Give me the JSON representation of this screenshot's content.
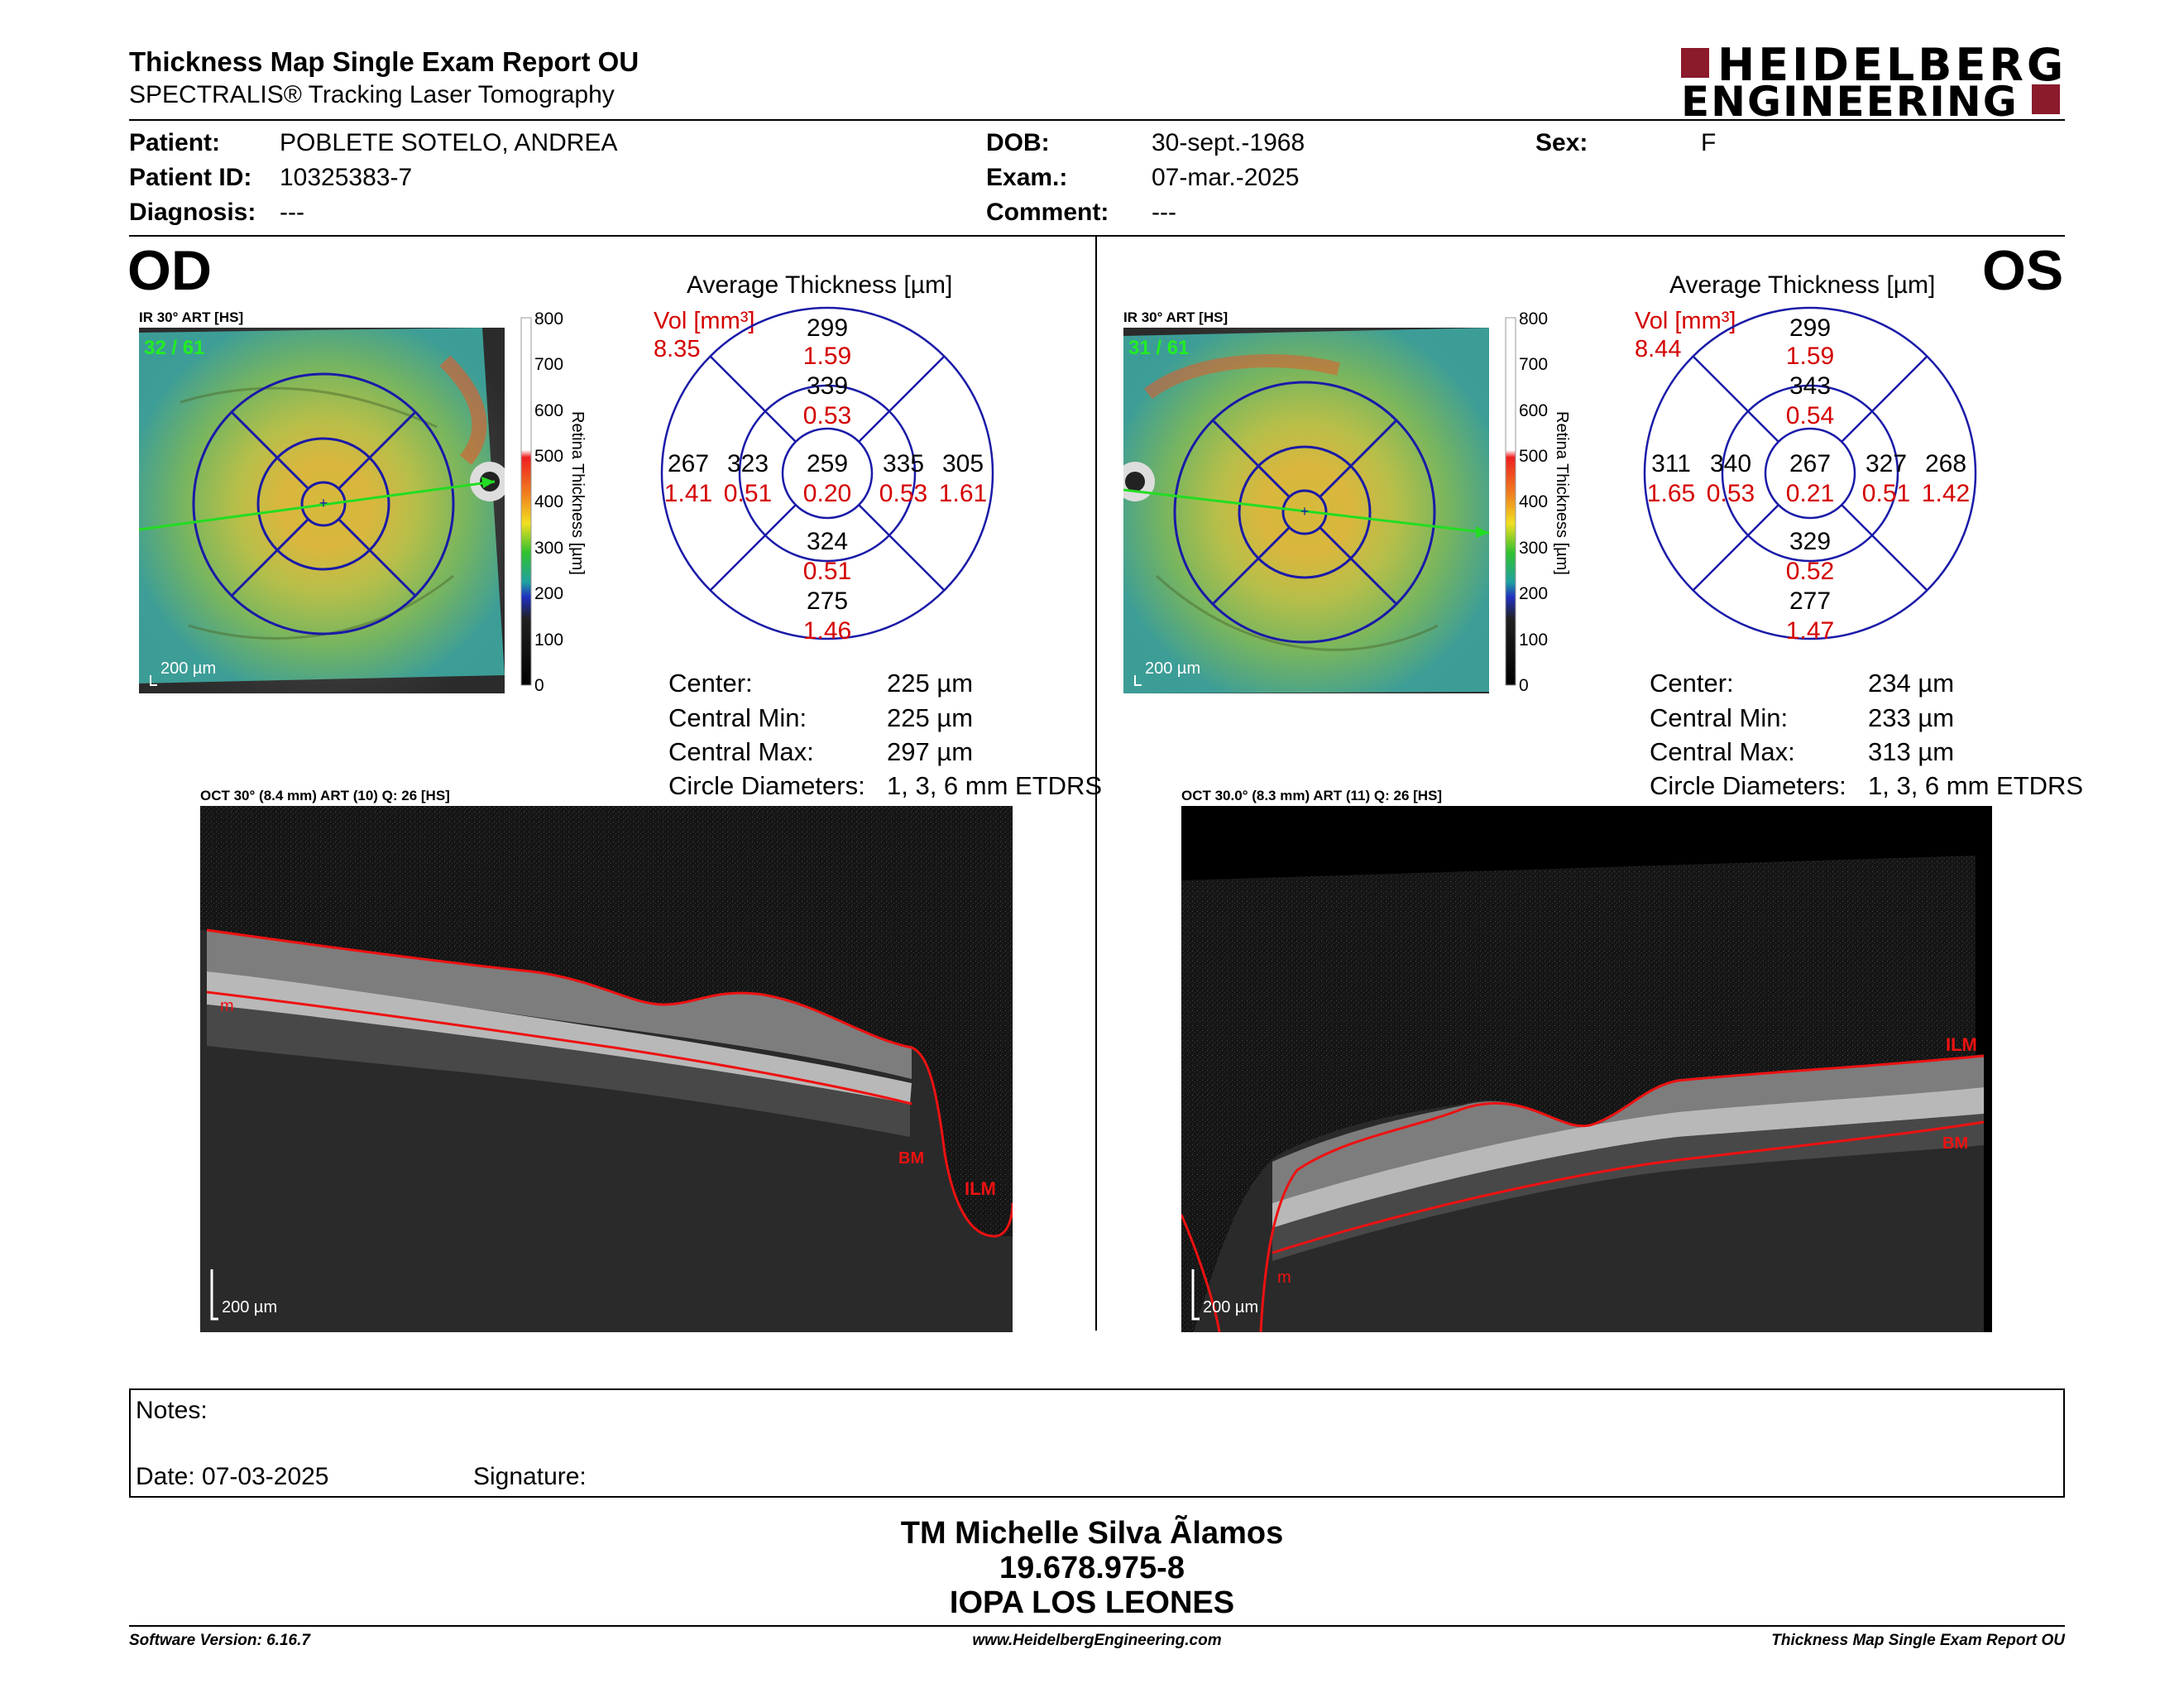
{
  "header": {
    "title": "Thickness Map Single Exam Report OU",
    "subtitle": "SPECTRALIS® Tracking Laser Tomography",
    "logo_line1": "HEIDELBERG",
    "logo_line2": "ENGINEERING",
    "brand_color": "#8b1a2b"
  },
  "patient": {
    "patient_label": "Patient:",
    "patient_value": "POBLETE SOTELO, ANDREA",
    "id_label": "Patient ID:",
    "id_value": "10325383-7",
    "diagnosis_label": "Diagnosis:",
    "diagnosis_value": "---",
    "dob_label": "DOB:",
    "dob_value": "30-sept.-1968",
    "exam_label": "Exam.:",
    "exam_value": "07-mar.-2025",
    "comment_label": "Comment:",
    "comment_value": "---",
    "sex_label": "Sex:",
    "sex_value": "F"
  },
  "od": {
    "eye": "OD",
    "ir_label": "IR 30° ART [HS]",
    "ir_counter": "32 / 61",
    "scale": "200 µm",
    "colorbar_ticks": [
      "800",
      "700",
      "600",
      "500",
      "400",
      "300",
      "200",
      "100",
      "0"
    ],
    "colorbar_title": "Retina  Thickness [µm]",
    "avg_title": "Average Thickness [µm]",
    "vol_label": "Vol [mm³]",
    "vol_value": "8.35",
    "etdrs": {
      "center": {
        "t": "259",
        "v": "0.20"
      },
      "inner_sup": {
        "t": "339",
        "v": "0.53"
      },
      "inner_inf": {
        "t": "324",
        "v": "0.51"
      },
      "inner_left": {
        "t": "323",
        "v": "0.51"
      },
      "inner_right": {
        "t": "335",
        "v": "0.53"
      },
      "outer_sup": {
        "t": "299",
        "v": "1.59"
      },
      "outer_inf": {
        "t": "275",
        "v": "1.46"
      },
      "outer_left": {
        "t": "267",
        "v": "1.41"
      },
      "outer_right": {
        "t": "305",
        "v": "1.61"
      }
    },
    "stats": [
      {
        "label": "Center:",
        "value": "225 µm"
      },
      {
        "label": "Central Min:",
        "value": "225 µm"
      },
      {
        "label": "Central Max:",
        "value": "297 µm"
      },
      {
        "label": "Circle Diameters:",
        "value": "1, 3, 6 mm ETDRS"
      }
    ],
    "oct_label": "OCT 30° (8.4 mm) ART (10) Q: 26 [HS]",
    "oct_scale": "200 µm",
    "layers": {
      "ilm": "ILM",
      "bm": "BM",
      "m": "m"
    }
  },
  "os": {
    "eye": "OS",
    "ir_label": "IR 30° ART [HS]",
    "ir_counter": "31 / 61",
    "scale": "200 µm",
    "colorbar_ticks": [
      "800",
      "700",
      "600",
      "500",
      "400",
      "300",
      "200",
      "100",
      "0"
    ],
    "colorbar_title": "Retina  Thickness [µm]",
    "avg_title": "Average Thickness [µm]",
    "vol_label": "Vol [mm³]",
    "vol_value": "8.44",
    "etdrs": {
      "center": {
        "t": "267",
        "v": "0.21"
      },
      "inner_sup": {
        "t": "343",
        "v": "0.54"
      },
      "inner_inf": {
        "t": "329",
        "v": "0.52"
      },
      "inner_left": {
        "t": "340",
        "v": "0.53"
      },
      "inner_right": {
        "t": "327",
        "v": "0.51"
      },
      "outer_sup": {
        "t": "299",
        "v": "1.59"
      },
      "outer_inf": {
        "t": "277",
        "v": "1.47"
      },
      "outer_left": {
        "t": "311",
        "v": "1.65"
      },
      "outer_right": {
        "t": "268",
        "v": "1.42"
      }
    },
    "stats": [
      {
        "label": "Center:",
        "value": "234 µm"
      },
      {
        "label": "Central Min:",
        "value": "233 µm"
      },
      {
        "label": "Central Max:",
        "value": "313 µm"
      },
      {
        "label": "Circle Diameters:",
        "value": "1, 3, 6 mm ETDRS"
      }
    ],
    "oct_label": "OCT 30.0° (8.3 mm) ART (11) Q: 26 [HS]",
    "oct_scale": "200 µm",
    "layers": {
      "ilm": "ILM",
      "bm": "BM",
      "m": "m"
    }
  },
  "notes": {
    "notes_label": "Notes:",
    "date_label": "Date: 07-03-2025",
    "signature_label": "Signature:"
  },
  "signature_block": {
    "name": "TM Michelle Silva Ãlamos",
    "rut": "19.678.975-8",
    "org": "IOPA LOS LEONES"
  },
  "footer": {
    "software": "Software Version: 6.16.7",
    "website": "www.HeidelbergEngineering.com",
    "report": "Thickness Map Single Exam Report OU"
  }
}
